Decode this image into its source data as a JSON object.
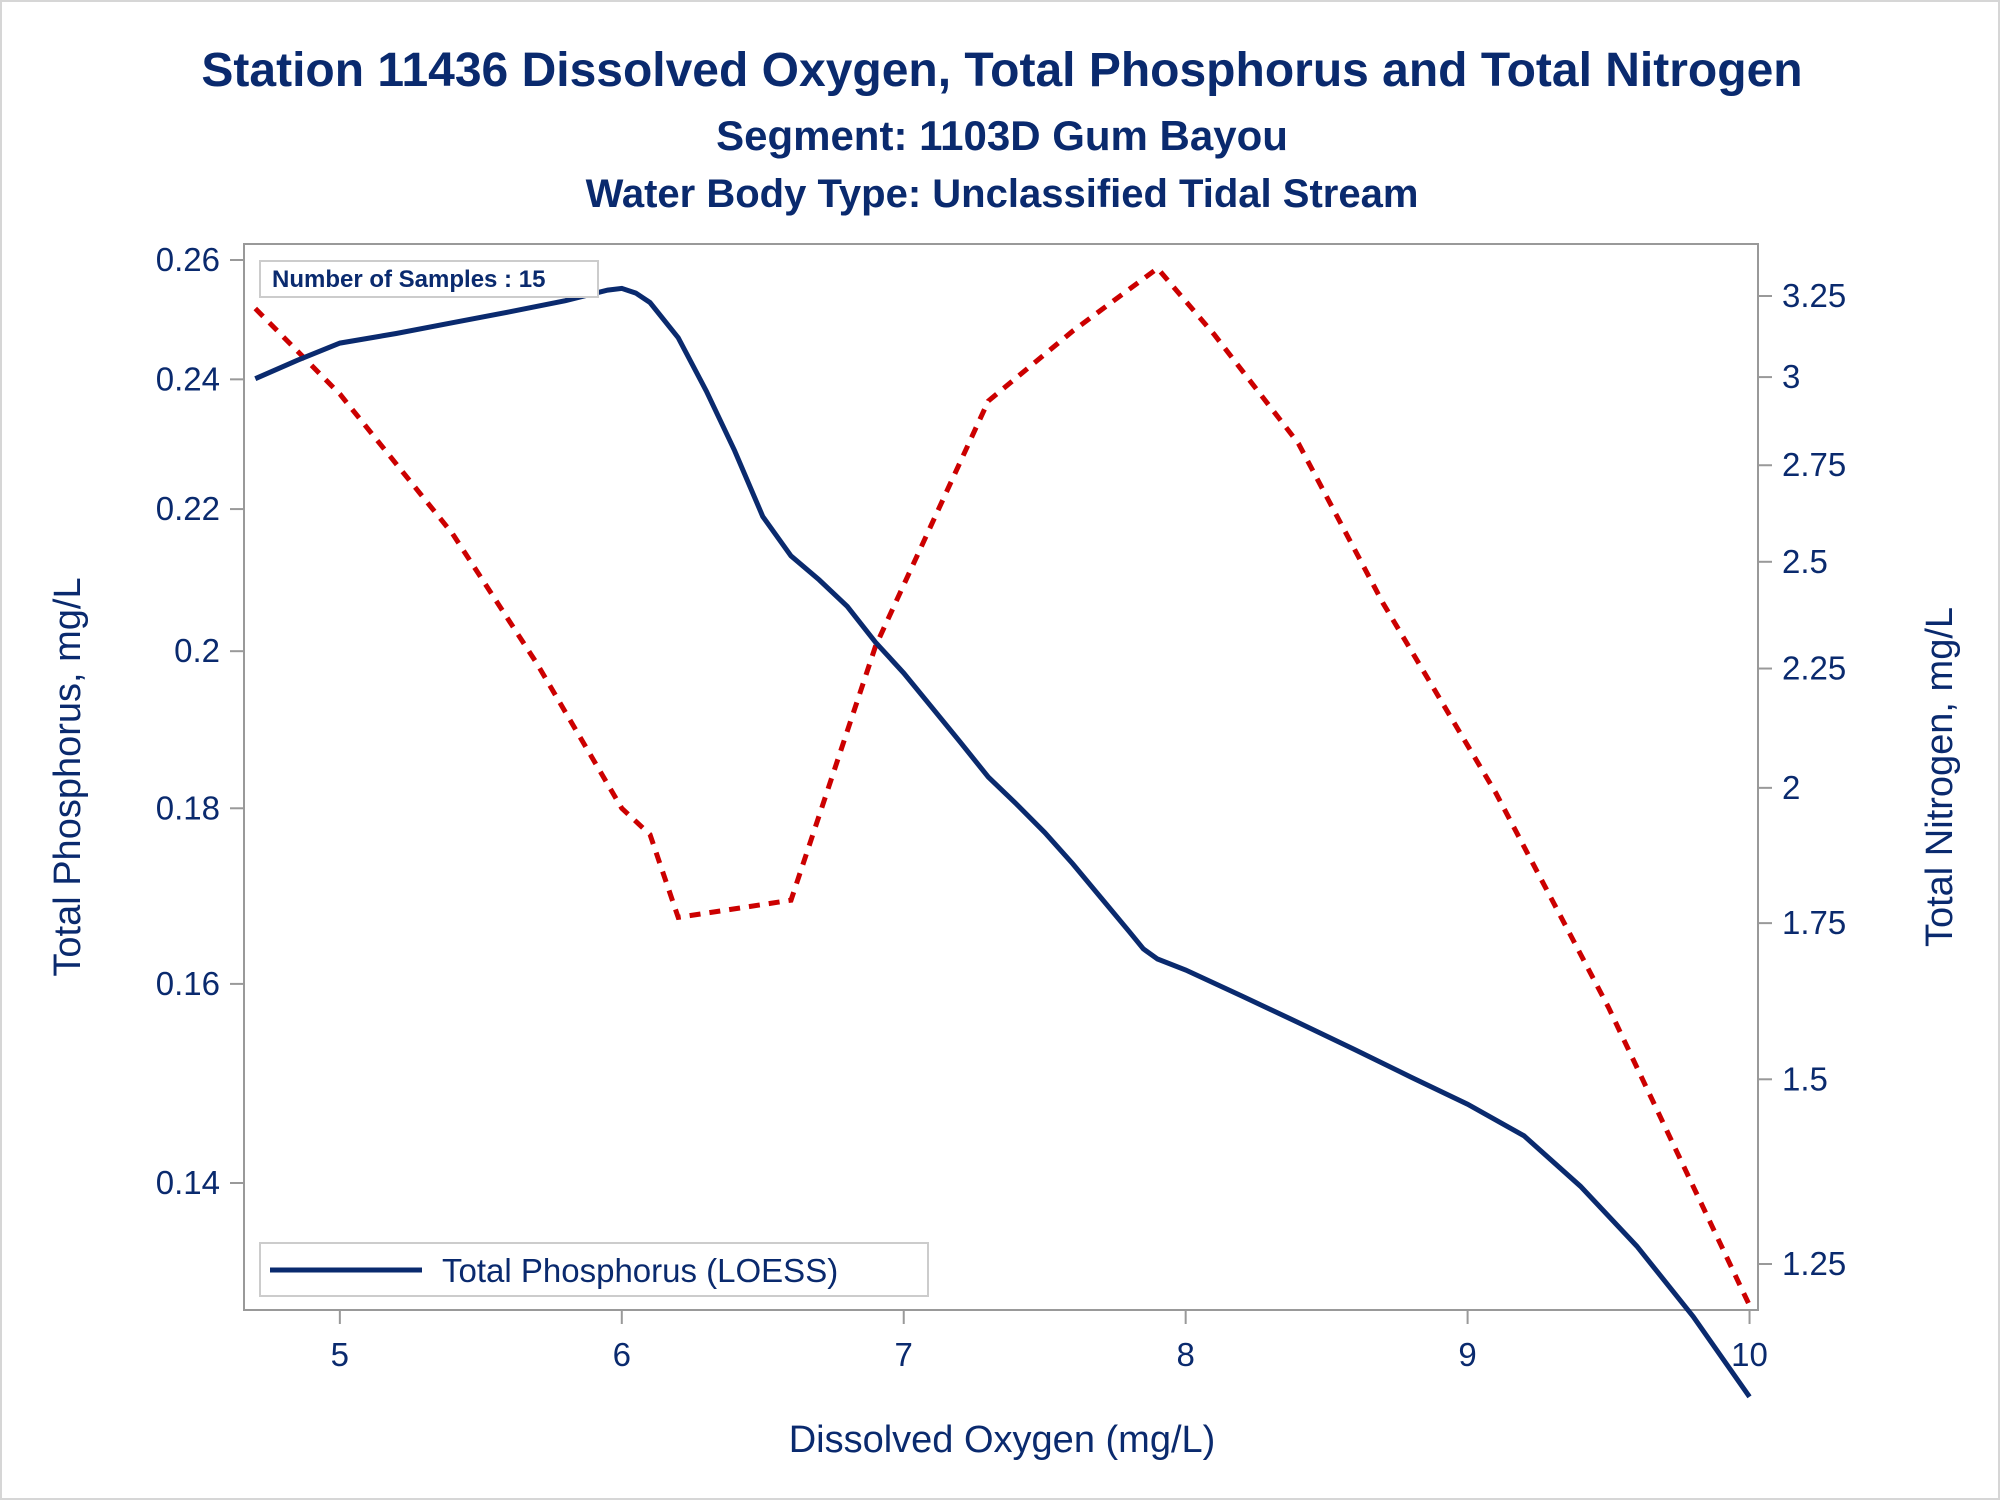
{
  "chart_data": {
    "type": "line",
    "title": "Station 11436  Dissolved Oxygen, Total Phosphorus and Total Nitrogen",
    "subtitle": "Segment: 1103D  Gum Bayou",
    "subtitle2": "Water Body Type: Unclassified Tidal Stream",
    "xlabel": "Dissolved Oxygen (mg/L)",
    "ylabel_left": "Total Phosphorus, mg/L",
    "ylabel_right": "Total Nitrogen, mg/L",
    "xlim": [
      4.66,
      10.03
    ],
    "x_ticks": [
      "5",
      "6",
      "7",
      "8",
      "9",
      "10"
    ],
    "y_left_ticks": [
      "0.14",
      "0.16",
      "0.18",
      "0.2",
      "0.22",
      "0.24",
      "0.26"
    ],
    "y_right_ticks": [
      "1.25",
      "1.5",
      "1.75",
      "2",
      "2.25",
      "2.5",
      "2.75",
      "3",
      "3.25"
    ],
    "inset_annotation": "Number of Samples : 15",
    "legend": {
      "entries": [
        "Total Phosphorus (LOESS)"
      ],
      "placement": "bottom-left"
    },
    "grid": false,
    "colors": {
      "phosphorus": "#0a2a6e",
      "nitrogen": "#cc0000",
      "text": "#0a2a6e",
      "axis": "#999999"
    },
    "series": [
      {
        "name": "Total Phosphorus (LOESS)",
        "axis": "left",
        "style": "solid",
        "points": [
          [
            4.7,
            0.2401
          ],
          [
            4.85,
            0.2431
          ],
          [
            5.0,
            0.2459
          ],
          [
            5.2,
            0.2475
          ],
          [
            5.4,
            0.2493
          ],
          [
            5.6,
            0.2511
          ],
          [
            5.8,
            0.253
          ],
          [
            5.95,
            0.2548
          ],
          [
            6.0,
            0.2551
          ],
          [
            6.05,
            0.2543
          ],
          [
            6.1,
            0.2527
          ],
          [
            6.2,
            0.2468
          ],
          [
            6.3,
            0.2381
          ],
          [
            6.4,
            0.2288
          ],
          [
            6.5,
            0.2189
          ],
          [
            6.6,
            0.2132
          ],
          [
            6.7,
            0.2098
          ],
          [
            6.8,
            0.2061
          ],
          [
            6.9,
            0.2012
          ],
          [
            7.0,
            0.1971
          ],
          [
            7.1,
            0.1926
          ],
          [
            7.2,
            0.1882
          ],
          [
            7.3,
            0.1838
          ],
          [
            7.4,
            0.1805
          ],
          [
            7.5,
            0.1771
          ],
          [
            7.6,
            0.1734
          ],
          [
            7.7,
            0.1695
          ],
          [
            7.8,
            0.1657
          ],
          [
            7.85,
            0.1638
          ],
          [
            7.9,
            0.1627
          ],
          [
            8.0,
            0.1615
          ],
          [
            8.2,
            0.1587
          ],
          [
            8.4,
            0.1559
          ],
          [
            8.6,
            0.1531
          ],
          [
            8.8,
            0.1503
          ],
          [
            9.0,
            0.1476
          ],
          [
            9.2,
            0.1445
          ],
          [
            9.4,
            0.1397
          ],
          [
            9.6,
            0.1342
          ],
          [
            9.8,
            0.128
          ],
          [
            10.0,
            0.1213
          ]
        ]
      },
      {
        "name": "",
        "axis": "right",
        "style": "dashed",
        "points": [
          [
            4.7,
            3.21
          ],
          [
            5.0,
            2.95
          ],
          [
            5.4,
            2.57
          ],
          [
            5.7,
            2.26
          ],
          [
            6.0,
            1.96
          ],
          [
            6.1,
            1.91
          ],
          [
            6.2,
            1.76
          ],
          [
            6.6,
            1.79
          ],
          [
            6.9,
            2.3
          ],
          [
            7.3,
            2.93
          ],
          [
            7.6,
            3.14
          ],
          [
            7.9,
            3.34
          ],
          [
            8.1,
            3.13
          ],
          [
            8.4,
            2.81
          ],
          [
            8.7,
            2.4
          ],
          [
            9.1,
            1.99
          ],
          [
            9.5,
            1.61
          ],
          [
            10.0,
            1.2
          ]
        ]
      }
    ]
  }
}
